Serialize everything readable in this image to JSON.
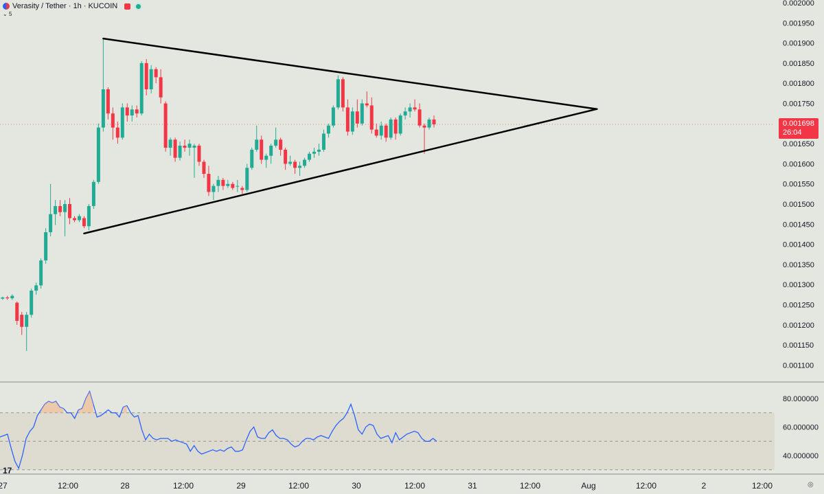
{
  "header": {
    "title": "Verasity / Tether · 1h · KUCOIN",
    "sub_label": "5"
  },
  "price_badge": {
    "price": "0.001698",
    "countdown": "26:04"
  },
  "chart_data": [
    {
      "type": "candlestick",
      "ylim": [
        0.00108,
        0.00202
      ],
      "y_ticks": [
        "0.002000",
        "0.001950",
        "0.001900",
        "0.001850",
        "0.001800",
        "0.001750",
        "0.001700",
        "0.001650",
        "0.001600",
        "0.001550",
        "0.001500",
        "0.001450",
        "0.001400",
        "0.001350",
        "0.001300",
        "0.001250",
        "0.001200",
        "0.001150",
        "0.001100"
      ],
      "x_tick_labels": [
        "27",
        "12:00",
        "28",
        "12:00",
        "29",
        "12:00",
        "30",
        "12:00",
        "31",
        "12:00",
        "Aug",
        "12:00",
        "2",
        "12:00"
      ],
      "candles": [
        [
          0.001265,
          0.00127,
          0.001262,
          0.001268
        ],
        [
          0.001268,
          0.001272,
          0.001262,
          0.001266
        ],
        [
          0.001266,
          0.001276,
          0.001262,
          0.001272
        ],
        [
          0.001255,
          0.001258,
          0.0012,
          0.00121
        ],
        [
          0.001225,
          0.001232,
          0.001175,
          0.001195
        ],
        [
          0.001195,
          0.001232,
          0.001135,
          0.001225
        ],
        [
          0.001225,
          0.00129,
          0.001218,
          0.001285
        ],
        [
          0.001285,
          0.001305,
          0.001275,
          0.001298
        ],
        [
          0.001298,
          0.001365,
          0.00129,
          0.00136
        ],
        [
          0.00136,
          0.00144,
          0.001352,
          0.00143
        ],
        [
          0.00143,
          0.00155,
          0.00142,
          0.001475
        ],
        [
          0.001475,
          0.00151,
          0.001448,
          0.001495
        ],
        [
          0.001495,
          0.00151,
          0.00147,
          0.00148
        ],
        [
          0.00148,
          0.00151,
          0.00142,
          0.0015
        ],
        [
          0.0015,
          0.001515,
          0.00145,
          0.001465
        ],
        [
          0.001465,
          0.00147,
          0.001455,
          0.00146
        ],
        [
          0.00146,
          0.001475,
          0.001455,
          0.00147
        ],
        [
          0.001465,
          0.00147,
          0.00144,
          0.001445
        ],
        [
          0.001445,
          0.0015,
          0.001435,
          0.001495
        ],
        [
          0.001495,
          0.00156,
          0.001488,
          0.001555
        ],
        [
          0.001555,
          0.0017,
          0.00155,
          0.00169
        ],
        [
          0.00169,
          0.00191,
          0.00168,
          0.001785
        ],
        [
          0.001785,
          0.00179,
          0.00171,
          0.001725
        ],
        [
          0.001725,
          0.00174,
          0.00166,
          0.00169
        ],
        [
          0.00169,
          0.001705,
          0.00165,
          0.001665
        ],
        [
          0.001665,
          0.00175,
          0.00166,
          0.00174
        ],
        [
          0.00174,
          0.00175,
          0.001705,
          0.00172
        ],
        [
          0.00172,
          0.001745,
          0.001705,
          0.001735
        ],
        [
          0.001735,
          0.001745,
          0.001715,
          0.001725
        ],
        [
          0.001725,
          0.001855,
          0.00172,
          0.00185
        ],
        [
          0.00185,
          0.00186,
          0.00177,
          0.001785
        ],
        [
          0.001785,
          0.001845,
          0.001775,
          0.001835
        ],
        [
          0.001835,
          0.00184,
          0.0018,
          0.001815
        ],
        [
          0.001815,
          0.001835,
          0.00175,
          0.001765
        ],
        [
          0.00175,
          0.001755,
          0.00163,
          0.00164
        ],
        [
          0.00164,
          0.001665,
          0.00162,
          0.00166
        ],
        [
          0.00166,
          0.001665,
          0.001605,
          0.001615
        ],
        [
          0.001615,
          0.001655,
          0.001608,
          0.001645
        ],
        [
          0.001645,
          0.00166,
          0.00163,
          0.00164
        ],
        [
          0.00164,
          0.00166,
          0.00162,
          0.00165
        ],
        [
          0.00164,
          0.00165,
          0.001565,
          0.001645
        ],
        [
          0.001645,
          0.00165,
          0.001595,
          0.001605
        ],
        [
          0.001605,
          0.00161,
          0.001565,
          0.001575
        ],
        [
          0.001575,
          0.001595,
          0.00152,
          0.00153
        ],
        [
          0.00153,
          0.00155,
          0.00151,
          0.001545
        ],
        [
          0.001545,
          0.00157,
          0.00153,
          0.00156
        ],
        [
          0.00156,
          0.001565,
          0.001535,
          0.001545
        ],
        [
          0.001545,
          0.00156,
          0.00154,
          0.00155
        ],
        [
          0.00155,
          0.001555,
          0.001535,
          0.00154
        ],
        [
          0.001545,
          0.00156,
          0.00153,
          0.001545
        ],
        [
          0.00154,
          0.001545,
          0.001525,
          0.001535
        ],
        [
          0.001535,
          0.0016,
          0.00153,
          0.00159
        ],
        [
          0.00159,
          0.00164,
          0.001585,
          0.001635
        ],
        [
          0.001635,
          0.001695,
          0.00163,
          0.00166
        ],
        [
          0.00166,
          0.00167,
          0.0016,
          0.00161
        ],
        [
          0.00161,
          0.001625,
          0.00159,
          0.00162
        ],
        [
          0.00162,
          0.00165,
          0.0016,
          0.001645
        ],
        [
          0.001645,
          0.00169,
          0.00164,
          0.00166
        ],
        [
          0.00166,
          0.001665,
          0.00162,
          0.001635
        ],
        [
          0.001635,
          0.00164,
          0.001585,
          0.0016
        ],
        [
          0.0016,
          0.00162,
          0.001595,
          0.001605
        ],
        [
          0.001605,
          0.00161,
          0.001575,
          0.00159
        ],
        [
          0.00159,
          0.001605,
          0.00157,
          0.001595
        ],
        [
          0.001595,
          0.001615,
          0.00159,
          0.00161
        ],
        [
          0.00161,
          0.00163,
          0.001605,
          0.001625
        ],
        [
          0.001625,
          0.00164,
          0.001615,
          0.00163
        ],
        [
          0.00163,
          0.00165,
          0.00162,
          0.001635
        ],
        [
          0.001635,
          0.001685,
          0.00163,
          0.001675
        ],
        [
          0.001675,
          0.0017,
          0.001665,
          0.001695
        ],
        [
          0.001695,
          0.001745,
          0.00169,
          0.00174
        ],
        [
          0.00174,
          0.00182,
          0.001735,
          0.00181
        ],
        [
          0.00181,
          0.001815,
          0.00173,
          0.00174
        ],
        [
          0.00174,
          0.00176,
          0.00167,
          0.00168
        ],
        [
          0.00168,
          0.00174,
          0.001672,
          0.00173
        ],
        [
          0.00173,
          0.00176,
          0.00169,
          0.0017
        ],
        [
          0.0017,
          0.00176,
          0.001695,
          0.00175
        ],
        [
          0.00175,
          0.00178,
          0.00174,
          0.001745
        ],
        [
          0.001745,
          0.001765,
          0.001675,
          0.001685
        ],
        [
          0.001685,
          0.0017,
          0.001665,
          0.00167
        ],
        [
          0.00167,
          0.001705,
          0.00166,
          0.001695
        ],
        [
          0.001695,
          0.0017,
          0.001655,
          0.001665
        ],
        [
          0.001665,
          0.001715,
          0.00166,
          0.00171
        ],
        [
          0.00171,
          0.001715,
          0.00166,
          0.001675
        ],
        [
          0.001675,
          0.001725,
          0.00167,
          0.00172
        ],
        [
          0.00172,
          0.00174,
          0.00171,
          0.00173
        ],
        [
          0.00173,
          0.00175,
          0.001715,
          0.00174
        ],
        [
          0.00174,
          0.00176,
          0.00173,
          0.001735
        ],
        [
          0.001735,
          0.00175,
          0.00169,
          0.001695
        ],
        [
          0.001695,
          0.0017,
          0.001625,
          0.00169
        ],
        [
          0.00169,
          0.001715,
          0.001685,
          0.00171
        ],
        [
          0.00171,
          0.00172,
          0.00169,
          0.001698
        ]
      ],
      "trendlines": [
        {
          "from": [
            21,
            0.001911
          ],
          "to": [
            124,
            0.001736
          ]
        },
        {
          "from": [
            17,
            0.001427
          ],
          "to": [
            124,
            0.001736
          ]
        }
      ]
    },
    {
      "type": "line",
      "indicator": "RSI",
      "y_ticks": [
        "80.000000",
        "60.000000",
        "40.000000"
      ],
      "ylim": [
        30,
        87
      ],
      "band_upper": 70,
      "band_middle": 50,
      "band_lower": 30,
      "values": [
        53,
        54,
        55,
        45,
        36,
        31,
        40,
        52,
        57,
        60,
        68,
        72,
        76,
        78,
        77,
        78,
        74,
        73,
        70,
        70,
        66,
        72,
        73,
        80,
        85,
        76,
        67,
        68,
        70,
        72,
        70,
        70,
        67,
        74,
        75,
        70,
        67,
        68,
        58,
        51,
        55,
        52,
        51,
        52,
        52,
        52,
        50,
        51,
        50,
        49,
        48,
        43,
        47,
        43,
        41,
        42,
        43,
        44,
        43,
        44,
        43,
        45,
        46,
        43,
        43,
        44,
        51,
        57,
        60,
        53,
        52,
        52,
        56,
        58,
        54,
        52,
        52,
        51,
        48,
        46,
        47,
        50,
        52,
        52,
        51,
        53,
        54,
        53,
        52,
        57,
        61,
        64,
        66,
        70,
        76,
        68,
        58,
        55,
        60,
        62,
        61,
        55,
        52,
        53,
        54,
        49,
        56,
        51,
        53,
        55,
        56,
        57,
        56,
        52,
        50,
        50,
        52,
        50
      ]
    }
  ]
}
